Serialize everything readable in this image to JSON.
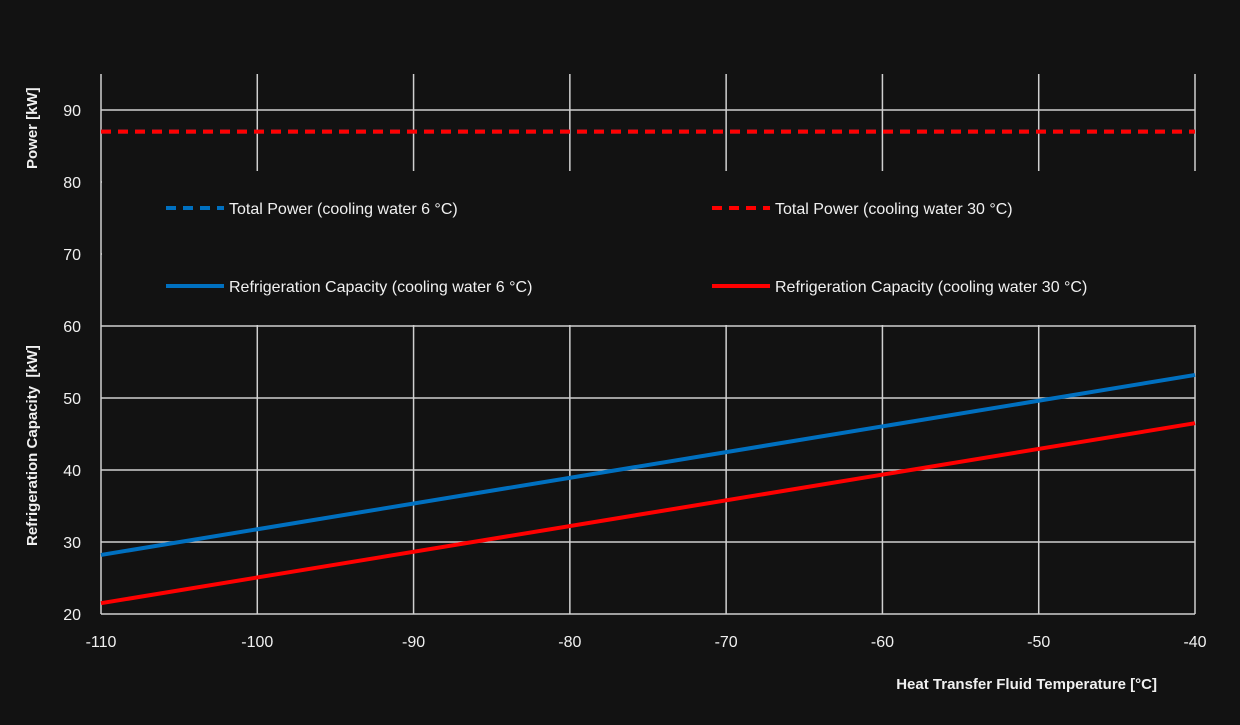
{
  "chart_data": {
    "type": "line",
    "title": "",
    "xlabel": "Heat Transfer Fluid Temperature [°C]",
    "ylabel_top": "Power [kW]",
    "ylabel_bottom": "Refrigeration Capacity  [kW]",
    "xlim": [
      -110,
      -40
    ],
    "ylim": [
      20,
      95
    ],
    "xticks": [
      -110,
      -100,
      -90,
      -80,
      -70,
      -60,
      -50,
      -40
    ],
    "yticks": [
      20,
      30,
      40,
      50,
      60,
      70,
      80,
      90
    ],
    "grid": true,
    "legend_position": "inside-top",
    "series": [
      {
        "name": "Total Power (cooling water 6 °C)",
        "color": "#0070c0",
        "style": "dashed",
        "x": [
          -110,
          -40
        ],
        "y": [
          87,
          87
        ]
      },
      {
        "name": "Total Power (cooling water 30 °C)",
        "color": "#ff0000",
        "style": "dashed",
        "x": [
          -110,
          -40
        ],
        "y": [
          87,
          87
        ]
      },
      {
        "name": "Refrigeration Capacity (cooling water 6 °C)",
        "color": "#0070c0",
        "style": "solid",
        "x": [
          -110,
          -40
        ],
        "y": [
          28.2,
          53.2
        ]
      },
      {
        "name": "Refrigeration Capacity (cooling water 30 °C)",
        "color": "#ff0000",
        "style": "solid",
        "x": [
          -110,
          -40
        ],
        "y": [
          21.5,
          46.5
        ]
      }
    ]
  }
}
